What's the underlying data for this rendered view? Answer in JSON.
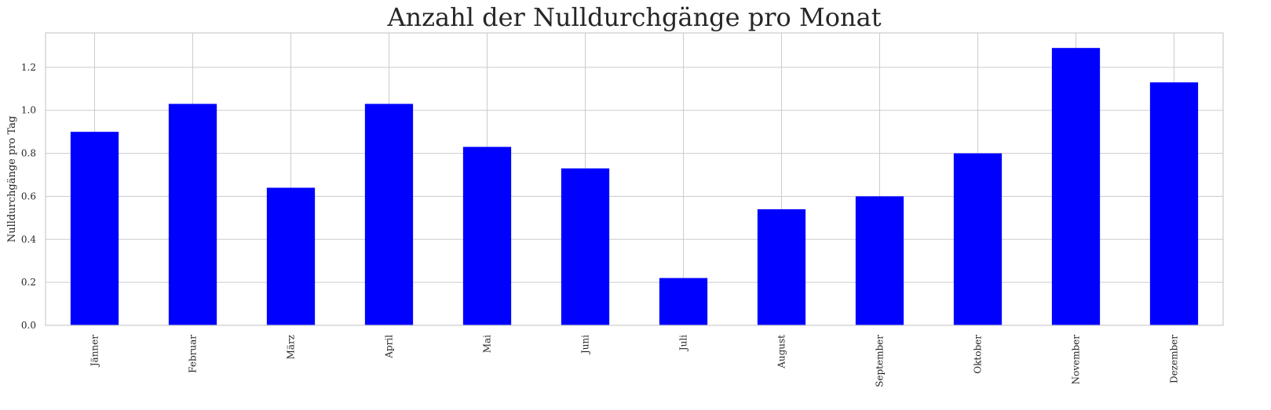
{
  "chart_data": {
    "type": "bar",
    "title": "Anzahl der Nulldurchgänge pro Monat",
    "xlabel": "",
    "ylabel": "Nulldurchgänge pro Tag",
    "categories": [
      "Jänner",
      "Februar",
      "März",
      "April",
      "Mai",
      "Juni",
      "Juli",
      "August",
      "September",
      "Oktober",
      "November",
      "Dezember"
    ],
    "values": [
      0.9,
      1.03,
      0.64,
      1.03,
      0.83,
      0.73,
      0.22,
      0.54,
      0.6,
      0.8,
      1.29,
      1.13
    ],
    "ylim": [
      0,
      1.36
    ],
    "yticks": [
      "0.0",
      "0.2",
      "0.4",
      "0.6",
      "0.8",
      "1.0",
      "1.2"
    ],
    "bar_color": "#0000ff",
    "grid": true,
    "legend": false
  }
}
